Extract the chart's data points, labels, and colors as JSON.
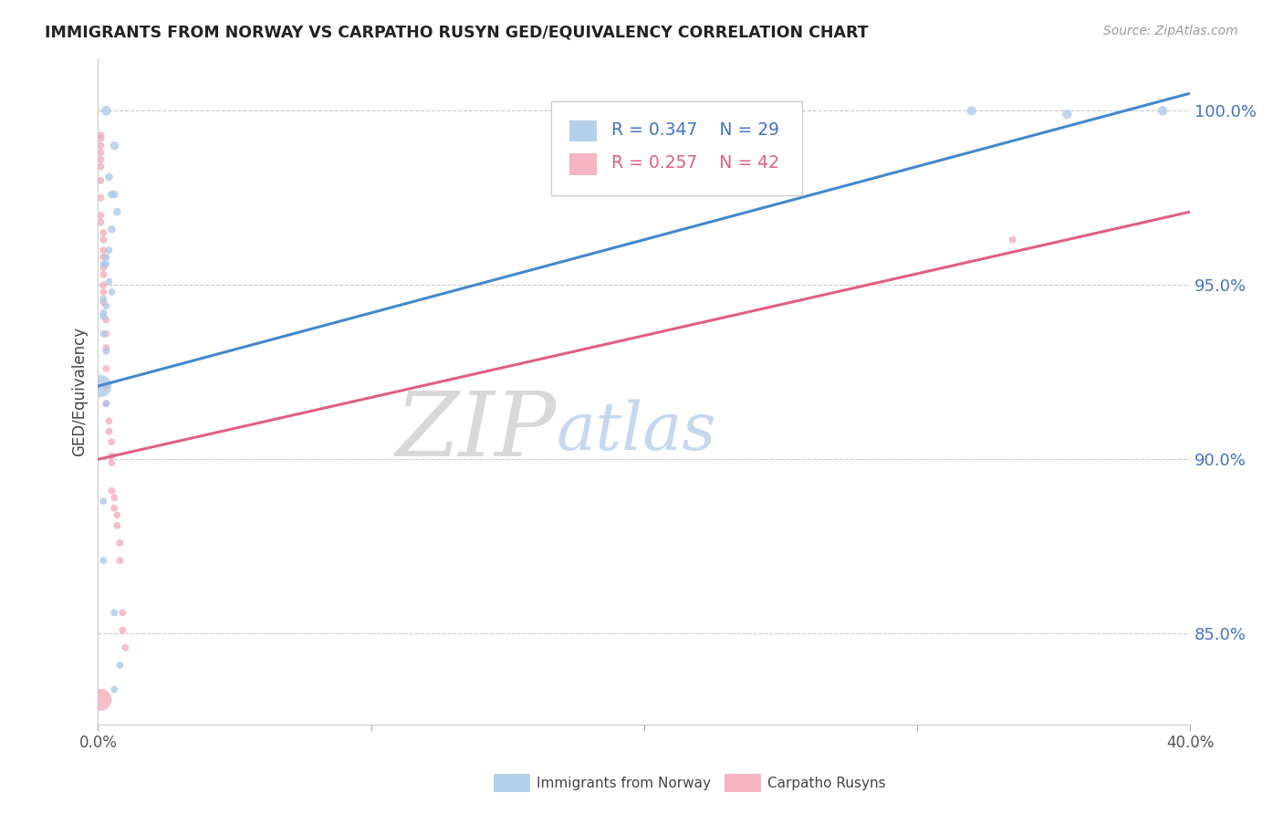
{
  "title": "IMMIGRANTS FROM NORWAY VS CARPATHO RUSYN GED/EQUIVALENCY CORRELATION CHART",
  "source": "Source: ZipAtlas.com",
  "ylabel": "GED/Equivalency",
  "ytick_labels": [
    "100.0%",
    "95.0%",
    "90.0%",
    "85.0%"
  ],
  "ytick_values": [
    1.0,
    0.95,
    0.9,
    0.85
  ],
  "xmin": 0.0,
  "xmax": 0.4,
  "ymin": 0.824,
  "ymax": 1.015,
  "legend_blue_r": "R = 0.347",
  "legend_blue_n": "N = 29",
  "legend_pink_r": "R = 0.257",
  "legend_pink_n": "N = 42",
  "legend_label_blue": "Immigrants from Norway",
  "legend_label_pink": "Carpatho Rusyns",
  "blue_color": "#a8c8e8",
  "pink_color": "#f4a8b8",
  "blue_line_color": "#4488cc",
  "pink_line_color": "#e06080",
  "watermark_zip": "ZIP",
  "watermark_atlas": "atlas",
  "blue_scatter_x": [
    0.003,
    0.006,
    0.004,
    0.005,
    0.006,
    0.007,
    0.005,
    0.004,
    0.003,
    0.002,
    0.003,
    0.004,
    0.005,
    0.002,
    0.003,
    0.002,
    0.002,
    0.002,
    0.003,
    0.002,
    0.002,
    0.006,
    0.008,
    0.006,
    0.001,
    0.003,
    0.32,
    0.355,
    0.39
  ],
  "blue_scatter_y": [
    1.0,
    0.99,
    0.981,
    0.976,
    0.976,
    0.971,
    0.966,
    0.96,
    0.958,
    0.956,
    0.956,
    0.951,
    0.948,
    0.946,
    0.944,
    0.942,
    0.941,
    0.936,
    0.931,
    0.888,
    0.871,
    0.856,
    0.841,
    0.834,
    0.921,
    0.916,
    1.0,
    0.999,
    1.0
  ],
  "blue_scatter_s": [
    60,
    45,
    40,
    38,
    38,
    38,
    38,
    32,
    32,
    32,
    32,
    32,
    32,
    32,
    32,
    32,
    32,
    32,
    32,
    32,
    32,
    32,
    32,
    32,
    300,
    32,
    55,
    55,
    55
  ],
  "pink_scatter_x": [
    0.001,
    0.001,
    0.001,
    0.001,
    0.001,
    0.001,
    0.001,
    0.001,
    0.001,
    0.001,
    0.002,
    0.002,
    0.002,
    0.002,
    0.002,
    0.002,
    0.002,
    0.002,
    0.002,
    0.003,
    0.003,
    0.003,
    0.003,
    0.003,
    0.003,
    0.004,
    0.004,
    0.005,
    0.005,
    0.005,
    0.005,
    0.006,
    0.006,
    0.007,
    0.007,
    0.008,
    0.008,
    0.009,
    0.009,
    0.01,
    0.335,
    0.001
  ],
  "pink_scatter_y": [
    0.993,
    0.992,
    0.99,
    0.988,
    0.986,
    0.984,
    0.98,
    0.975,
    0.97,
    0.968,
    0.965,
    0.963,
    0.96,
    0.958,
    0.955,
    0.953,
    0.95,
    0.948,
    0.945,
    0.94,
    0.936,
    0.932,
    0.926,
    0.921,
    0.916,
    0.911,
    0.908,
    0.905,
    0.901,
    0.899,
    0.891,
    0.889,
    0.886,
    0.884,
    0.881,
    0.876,
    0.871,
    0.856,
    0.851,
    0.846,
    0.963,
    0.831
  ],
  "pink_scatter_s": [
    32,
    32,
    32,
    32,
    32,
    32,
    32,
    32,
    32,
    32,
    32,
    32,
    32,
    32,
    32,
    32,
    32,
    32,
    32,
    32,
    32,
    32,
    32,
    32,
    32,
    32,
    32,
    32,
    32,
    32,
    32,
    32,
    32,
    32,
    32,
    32,
    32,
    32,
    32,
    32,
    32,
    300
  ],
  "blue_line_x0": 0.0,
  "blue_line_y0": 0.921,
  "blue_line_x1": 0.4,
  "blue_line_y1": 1.005,
  "pink_line_x0": 0.0,
  "pink_line_y0": 0.9,
  "pink_line_x1": 0.4,
  "pink_line_y1": 0.971
}
